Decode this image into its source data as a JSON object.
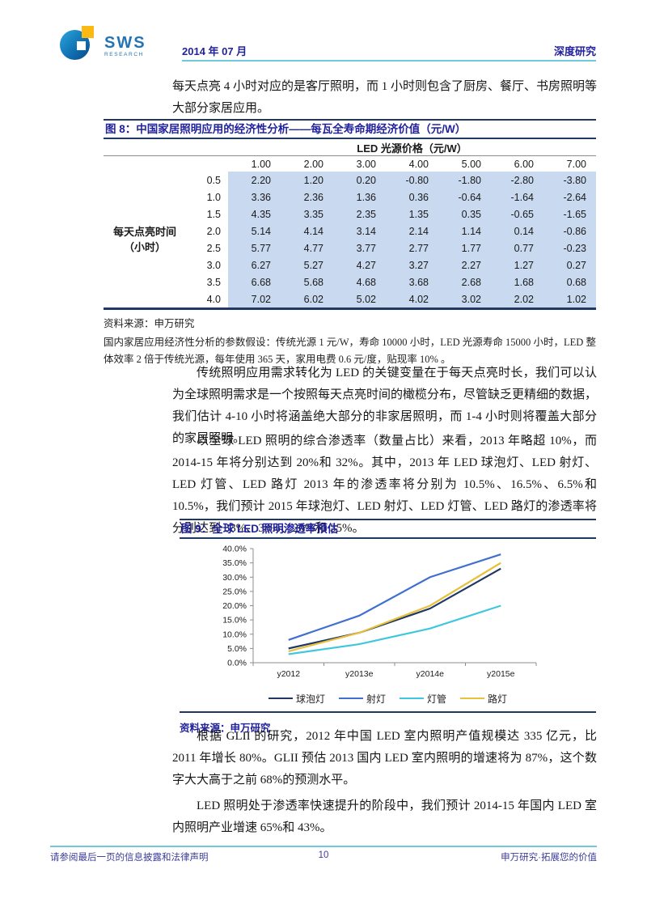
{
  "header": {
    "brand": "SWS",
    "brand_sub": "RESEARCH",
    "date": "2014 年 07 月",
    "doc_type": "深度研究"
  },
  "paragraphs": {
    "p1": "每天点亮 4 小时对应的是客厅照明，而 1 小时则包含了厨房、餐厅、书房照明等大部分家居应用。",
    "p2": "传统照明应用需求转化为 LED 的关键变量在于每天点亮时长，我们可以认为全球照明需求是一个按照每天点亮时间的橄榄分布，尽管缺乏更精细的数据，我们估计 4-10 小时将涵盖绝大部分的非家居照明，而 1-4 小时则将覆盖大部分的家居照明。",
    "p3": "以全球 LED 照明的综合渗透率（数量占比）来看，2013 年略超 10%，而 2014-15 年将分别达到 20%和 32%。其中，2013 年 LED 球泡灯、LED 射灯、LED 灯管、LED 路灯 2013 年的渗透率将分别为 10.5%、16.5%、6.5%和 10.5%，我们预计 2015 年球泡灯、LED 射灯、LED 灯管、LED 路灯的渗透率将分别达到 33%、38%、20%和 35%。",
    "p4": "根据 GLII 的研究，2012 年中国 LED 室内照明产值规模达 335 亿元，比 2011 年增长 80%。GLII 预估 2013 国内 LED 室内照明的增速将为 87%，这个数字大大高于之前 68%的预测水平。",
    "p5": "LED 照明处于渗透率快速提升的阶段中，我们预计 2014-15 年国内 LED 室内照明产业增速 65%和 43%。"
  },
  "table": {
    "title": "图 8：中国家居照明应用的经济性分析——每瓦全寿命期经济价值（元/W）",
    "col_group_header": "LED 光源价格（元/W）",
    "row_group_header_line1": "每天点亮时间",
    "row_group_header_line2": "（小时）",
    "col_headers": [
      "1.00",
      "2.00",
      "3.00",
      "4.00",
      "5.00",
      "6.00",
      "7.00"
    ],
    "rows": [
      {
        "hours": "0.5",
        "values": [
          "2.20",
          "1.20",
          "0.20",
          "-0.80",
          "-1.80",
          "-2.80",
          "-3.80"
        ]
      },
      {
        "hours": "1.0",
        "values": [
          "3.36",
          "2.36",
          "1.36",
          "0.36",
          "-0.64",
          "-1.64",
          "-2.64"
        ]
      },
      {
        "hours": "1.5",
        "values": [
          "4.35",
          "3.35",
          "2.35",
          "1.35",
          "0.35",
          "-0.65",
          "-1.65"
        ]
      },
      {
        "hours": "2.0",
        "values": [
          "5.14",
          "4.14",
          "3.14",
          "2.14",
          "1.14",
          "0.14",
          "-0.86"
        ]
      },
      {
        "hours": "2.5",
        "values": [
          "5.77",
          "4.77",
          "3.77",
          "2.77",
          "1.77",
          "0.77",
          "-0.23"
        ]
      },
      {
        "hours": "3.0",
        "values": [
          "6.27",
          "5.27",
          "4.27",
          "3.27",
          "2.27",
          "1.27",
          "0.27"
        ]
      },
      {
        "hours": "3.5",
        "values": [
          "6.68",
          "5.68",
          "4.68",
          "3.68",
          "2.68",
          "1.68",
          "0.68"
        ]
      },
      {
        "hours": "4.0",
        "values": [
          "7.02",
          "6.02",
          "5.02",
          "4.02",
          "3.02",
          "2.02",
          "1.02"
        ]
      }
    ],
    "source": "资料来源：申万研究",
    "note": "国内家居应用经济性分析的参数假设：传统光源 1 元/W，寿命 10000 小时，LED 光源寿命 15000 小时，LED 整体效率 2 倍于传统光源，每年使用 365 天，家用电费 0.6 元/度，贴现率 10% 。"
  },
  "figure9": {
    "title": "图 9：全球 LED 照明渗透率预估",
    "source": "资料来源：申万研究"
  },
  "chart_data": {
    "type": "line",
    "title": "全球 LED 照明渗透率预估",
    "x": [
      "y2012",
      "y2013e",
      "y2014e",
      "y2015e"
    ],
    "series": [
      {
        "name": "球泡灯",
        "color": "#1f3864",
        "values": [
          5.0,
          10.5,
          19.0,
          33.0
        ]
      },
      {
        "name": "射灯",
        "color": "#3f6fd0",
        "values": [
          8.0,
          16.5,
          30.0,
          38.0
        ]
      },
      {
        "name": "灯管",
        "color": "#3fc8dd",
        "values": [
          3.0,
          6.5,
          12.0,
          20.0
        ]
      },
      {
        "name": "路灯",
        "color": "#e7c13d",
        "values": [
          4.0,
          10.5,
          20.0,
          35.0
        ]
      }
    ],
    "ylim": [
      0,
      40
    ],
    "ytick_step": 5,
    "ytick_format": "percent_one_decimal",
    "grid": false,
    "legend_position": "bottom"
  },
  "footer": {
    "left": "请参阅最后一页的信息披露和法律声明",
    "page": "10",
    "right": "申万研究·拓展您的价值"
  }
}
